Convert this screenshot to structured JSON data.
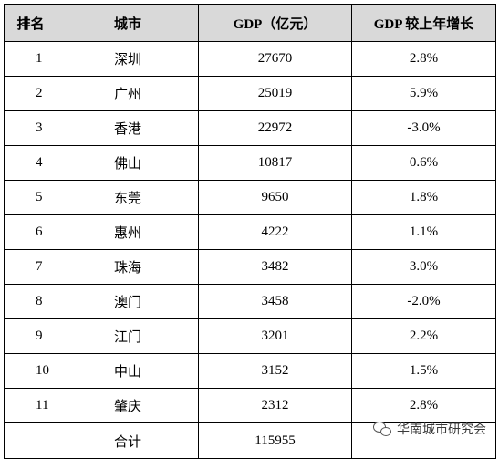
{
  "table": {
    "headers": [
      "排名",
      "城市",
      "GDP（亿元）",
      "GDP 较上年增长"
    ],
    "rows": [
      {
        "rank": "1",
        "city": "深圳",
        "gdp": "27670",
        "growth": "2.8%"
      },
      {
        "rank": "2",
        "city": "广州",
        "gdp": "25019",
        "growth": "5.9%"
      },
      {
        "rank": "3",
        "city": "香港",
        "gdp": "22972",
        "growth": "-3.0%"
      },
      {
        "rank": "4",
        "city": "佛山",
        "gdp": "10817",
        "growth": "0.6%"
      },
      {
        "rank": "5",
        "city": "东莞",
        "gdp": "9650",
        "growth": "1.8%"
      },
      {
        "rank": "6",
        "city": "惠州",
        "gdp": "4222",
        "growth": "1.1%"
      },
      {
        "rank": "7",
        "city": "珠海",
        "gdp": "3482",
        "growth": "3.0%"
      },
      {
        "rank": "8",
        "city": "澳门",
        "gdp": "3458",
        "growth": "-2.0%"
      },
      {
        "rank": "9",
        "city": "江门",
        "gdp": "3201",
        "growth": "2.2%"
      },
      {
        "rank": "10",
        "city": "中山",
        "gdp": "3152",
        "growth": "1.5%"
      },
      {
        "rank": "11",
        "city": "肇庆",
        "gdp": "2312",
        "growth": "2.8%"
      }
    ],
    "total": {
      "rank": "",
      "city": "合计",
      "gdp": "115955",
      "growth": ""
    }
  },
  "watermark": {
    "icon": "wechat-icon",
    "text": "华南城市研究会"
  }
}
